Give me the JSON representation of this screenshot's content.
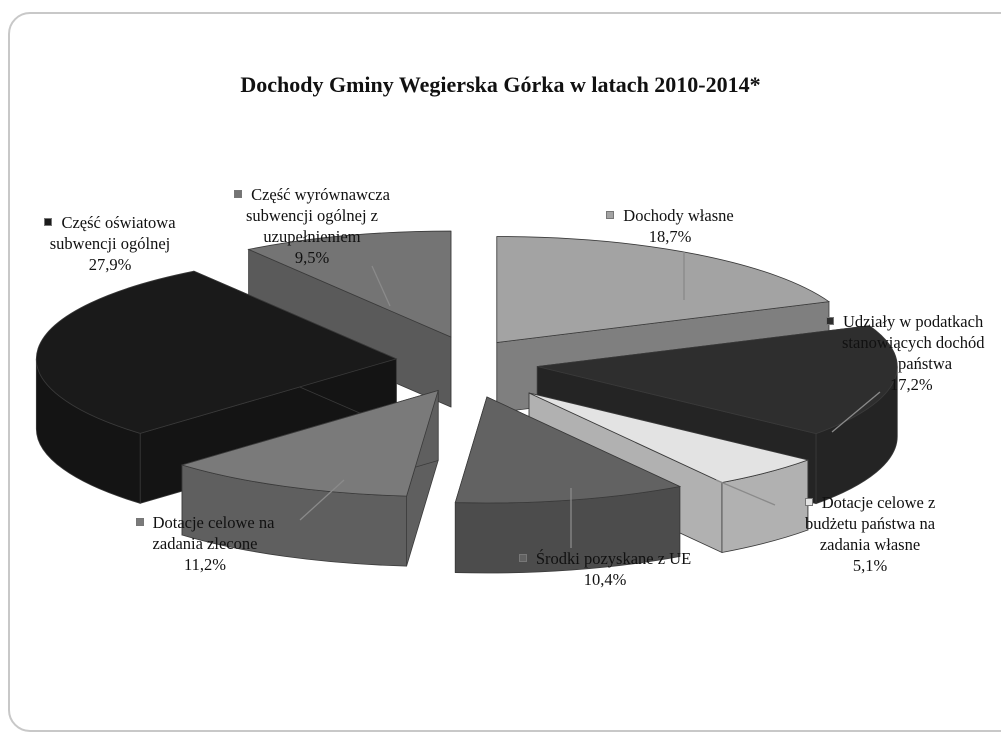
{
  "chart_data": {
    "type": "pie",
    "title": "Dochody Gminy Wegierska Górka w latach 2010-2014*",
    "series": [
      {
        "name": "Dochody własne",
        "value": 18.7,
        "label": "18,7%",
        "color": "#a3a3a3"
      },
      {
        "name": "Udziały w podatkach stanowiących dochód budżetu państwa",
        "value": 17.2,
        "label": "17,2%",
        "color": "#2e2e2e"
      },
      {
        "name": "Dotacje celowe z budżetu państwa na zadania własne",
        "value": 5.1,
        "label": "5,1%",
        "color": "#e3e3e3"
      },
      {
        "name": "Środki pozyskane z UE",
        "value": 10.4,
        "label": "10,4%",
        "color": "#626262"
      },
      {
        "name": "Dotacje celowe na zadania zlecone",
        "value": 11.2,
        "label": "11,2%",
        "color": "#7a7a7a"
      },
      {
        "name": "Część oświatowa subwencji ogólnej",
        "value": 27.9,
        "label": "27,9%",
        "color": "#1a1a1a"
      },
      {
        "name": "Część wyrównawcza subwencji ogólnej z uzupełnieniem",
        "value": 9.5,
        "label": "9,5%",
        "color": "#747474"
      }
    ],
    "labels": {
      "dochody_wlasne": [
        "Dochody własne"
      ],
      "udzialy": [
        "Udziały w podatkach",
        "stanowiących dochód",
        "państwa"
      ],
      "dotacje_wlasne": [
        "Dotacje celowe z",
        "budżetu państwa na",
        "zadania własne"
      ],
      "srodki_ue": [
        "Środki pozyskane z UE"
      ],
      "dotacje_zlecone": [
        "Dotacje celowe na",
        "zadania zlecone"
      ],
      "oswiatowa": [
        "Część oświatowa",
        "subwencji ogólnej"
      ],
      "wyrownawcza": [
        "Część wyrównawcza",
        "subwencji ogólnej z",
        "uzupełnieniem"
      ]
    }
  }
}
